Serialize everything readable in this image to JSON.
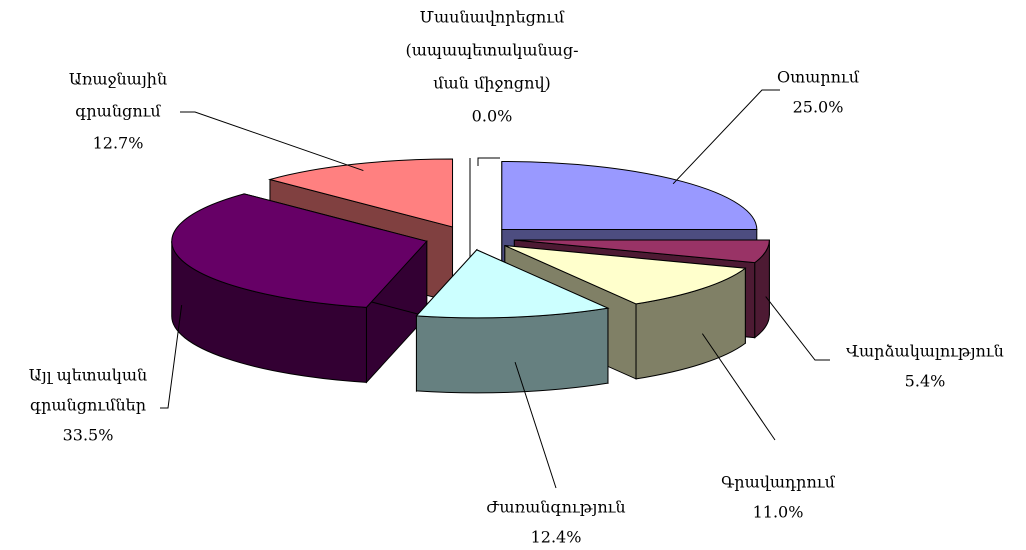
{
  "chart_data": {
    "type": "pie3d",
    "categories": [
      [
        "Օտարում"
      ],
      [
        "Վարձակալություն"
      ],
      [
        "Գրավադրում"
      ],
      [
        "Ժառանգություն"
      ],
      [
        "Այլ պետական",
        "գրանցումներ"
      ],
      [
        "Առաջնային",
        "գրանցում"
      ],
      [
        "Մասնավորեցում",
        "(ապապետականաց-",
        "ման միջոցով)"
      ]
    ],
    "values": [
      25.0,
      5.4,
      11.0,
      12.4,
      33.5,
      12.7,
      0.0
    ],
    "value_labels": [
      "25.0%",
      "5.4%",
      "11.0%",
      "12.4%",
      "33.5%",
      "12.7%",
      "0.0%"
    ],
    "colors": [
      "#9999ff",
      "#993366",
      "#ffffcc",
      "#ccffff",
      "#660066",
      "#ff8080",
      "#ffffff"
    ]
  }
}
